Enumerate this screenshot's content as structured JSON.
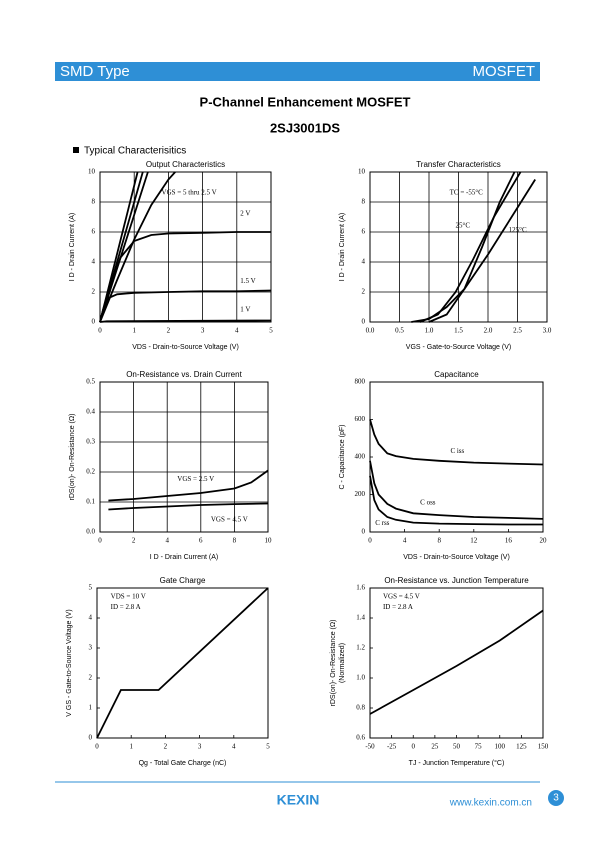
{
  "header": {
    "left": "SMD Type",
    "right": "MOSFET"
  },
  "title": "P-Channel Enhancement MOSFET",
  "part_number": "2SJ3001DS",
  "section": "Typical Characterisitics",
  "footer": {
    "logo": "KEXIN",
    "url": "www.kexin.com.cn",
    "page": "3"
  },
  "chart_data": [
    {
      "type": "line",
      "title": "Output Characteristics",
      "xlabel": "VDS  -  Drain-to-Source Voltage (V)",
      "ylabel": "I D  -  Drain Current (A)",
      "color": "#000000",
      "grid": true,
      "xlim": [
        0,
        5
      ],
      "xticks": [
        0,
        1,
        2,
        3,
        4,
        5
      ],
      "ylim": [
        0,
        10
      ],
      "yticks": [
        0,
        2,
        4,
        6,
        8,
        10
      ],
      "series": [
        {
          "name": "VGS  = 5 thru 2.5 V",
          "x": [
            0,
            1.1
          ],
          "values": [
            0,
            10
          ]
        },
        {
          "x": [
            0,
            1.25
          ],
          "values": [
            0,
            10
          ]
        },
        {
          "x": [
            0,
            1.4
          ],
          "values": [
            0,
            10
          ]
        },
        {
          "x": [
            0,
            0.5,
            1,
            1.5,
            2,
            2.2
          ],
          "values": [
            0,
            2.8,
            5.5,
            7.8,
            9.5,
            10
          ]
        },
        {
          "name": "2 V",
          "x": [
            0,
            0.3,
            0.6,
            1,
            1.5,
            2,
            3,
            4,
            5
          ],
          "values": [
            0,
            2.5,
            4.3,
            5.4,
            5.8,
            5.9,
            5.95,
            6,
            6
          ]
        },
        {
          "name": "1.5 V",
          "x": [
            0,
            0.1,
            0.25,
            0.5,
            1,
            2,
            3,
            4,
            5
          ],
          "values": [
            0,
            0.9,
            1.6,
            1.85,
            1.95,
            2,
            2.05,
            2.05,
            2.1
          ]
        },
        {
          "name": "1 V",
          "x": [
            0,
            0.2,
            5
          ],
          "values": [
            0,
            0.05,
            0.1
          ]
        }
      ]
    },
    {
      "type": "line",
      "title": "Transfer Characteristics",
      "xlabel": "VGS  -  Gate-to-Source Voltage (V)",
      "ylabel": "I D  -  Drain Current (A)",
      "color": "#000000",
      "grid": true,
      "xlim": [
        0,
        3
      ],
      "xticks": [
        {
          "value": 0,
          "label": "0.0"
        },
        0.5,
        {
          "value": 1,
          "label": "1.0"
        },
        1.5,
        {
          "value": 2,
          "label": "2.0"
        },
        2.5,
        {
          "value": 3,
          "label": "3.0"
        }
      ],
      "ylim": [
        0,
        10
      ],
      "yticks": [
        0,
        2,
        4,
        6,
        8,
        10
      ],
      "series": [
        {
          "name": "TC  = -55°C",
          "x": [
            1.0,
            1.3,
            1.6,
            1.9,
            2.2,
            2.45
          ],
          "values": [
            0,
            0.5,
            2.2,
            5,
            8,
            10
          ]
        },
        {
          "name": "25°C",
          "x": [
            0.85,
            1.15,
            1.45,
            1.75,
            2.1,
            2.55
          ],
          "values": [
            0,
            0.5,
            2,
            4.2,
            7,
            10
          ]
        },
        {
          "name": "125°C",
          "x": [
            0.7,
            1.0,
            1.3,
            1.6,
            2.0,
            2.4,
            2.8
          ],
          "values": [
            0,
            0.2,
            1,
            2.2,
            4.5,
            7,
            9.5
          ]
        }
      ]
    },
    {
      "type": "line",
      "title": "On-Resistance  vs. Drain Current",
      "xlabel": "I D  -  Drain Current (A)",
      "ylabel": "rDS(on)-  On-Resistance (Ω)",
      "color": "#000000",
      "grid": true,
      "xlim": [
        0,
        10
      ],
      "xticks": [
        0,
        2,
        4,
        6,
        8,
        10
      ],
      "ylim": [
        0,
        0.5
      ],
      "yticks": [
        {
          "value": 0,
          "label": "0.0"
        },
        0.1,
        0.2,
        0.3,
        0.4,
        0.5
      ],
      "series": [
        {
          "name": "VGS  = 2.5 V",
          "x": [
            0.5,
            2,
            4,
            6,
            8,
            9,
            10
          ],
          "values": [
            0.105,
            0.11,
            0.12,
            0.13,
            0.145,
            0.165,
            0.205
          ]
        },
        {
          "name": "VGS  = 4.5 V",
          "x": [
            0.5,
            2,
            4,
            6,
            8,
            10
          ],
          "values": [
            0.075,
            0.08,
            0.085,
            0.09,
            0.093,
            0.095
          ]
        }
      ]
    },
    {
      "type": "line",
      "title": "Capacitance",
      "xlabel": "VDS  -  Drain-to-Source Voltage (V)",
      "ylabel": "C  -  Capacitance (pF)",
      "color": "#000000",
      "grid": false,
      "xlim": [
        0,
        20
      ],
      "xticks": [
        0,
        4,
        8,
        12,
        16,
        20
      ],
      "ylim": [
        0,
        800
      ],
      "yticks": [
        0,
        200,
        400,
        600,
        800
      ],
      "series": [
        {
          "name": "C iss",
          "x": [
            0,
            0.5,
            1,
            2,
            3,
            5,
            8,
            12,
            16,
            20
          ],
          "values": [
            600,
            520,
            470,
            420,
            405,
            390,
            380,
            370,
            365,
            360
          ]
        },
        {
          "name": "C oss",
          "x": [
            0,
            0.5,
            1,
            2,
            3,
            5,
            8,
            12,
            16,
            20
          ],
          "values": [
            380,
            260,
            200,
            150,
            125,
            100,
            90,
            80,
            75,
            70
          ]
        },
        {
          "name": "C rss",
          "x": [
            0,
            0.5,
            1,
            2,
            3,
            5,
            8,
            12,
            16,
            20
          ],
          "values": [
            300,
            170,
            120,
            80,
            65,
            50,
            45,
            42,
            40,
            40
          ]
        }
      ]
    },
    {
      "type": "line",
      "title": "Gate Charge",
      "xlabel": "Qg  -  Total Gate Charge (nC)",
      "ylabel": "V GS  -  Gate-to-Source Voltage (V)",
      "color": "#000000",
      "grid": false,
      "xlim": [
        0,
        5
      ],
      "xticks": [
        0,
        1,
        2,
        3,
        4,
        5
      ],
      "ylim": [
        0,
        5
      ],
      "yticks": [
        0,
        1,
        2,
        3,
        4,
        5
      ],
      "annotations": [
        "VDS  = 10 V",
        "ID = 2.8 A"
      ],
      "series": [
        {
          "x": [
            0,
            0.7,
            1.8,
            5
          ],
          "values": [
            0,
            1.6,
            1.6,
            5
          ]
        }
      ]
    },
    {
      "type": "line",
      "title": "On-Resistance vs. Junction Temperature",
      "xlabel": "TJ  -  Junction Temperature (°C)",
      "ylabel": [
        "rDS(on)- On-Resistance (Ω)",
        "(Normalized)"
      ],
      "color": "#000000",
      "grid": false,
      "xlim": [
        -50,
        150
      ],
      "xticks": [
        -50,
        -25,
        0,
        25,
        50,
        75,
        100,
        125,
        150
      ],
      "ylim": [
        0.6,
        1.6
      ],
      "yticks": [
        0.6,
        0.8,
        {
          "value": 1,
          "label": "1.0"
        },
        1.2,
        1.4,
        1.6
      ],
      "annotations": [
        "VGS  = 4.5 V",
        "ID = 2.8 A"
      ],
      "series": [
        {
          "x": [
            -50,
            0,
            50,
            100,
            150
          ],
          "values": [
            0.76,
            0.92,
            1.08,
            1.25,
            1.45
          ]
        }
      ]
    }
  ]
}
